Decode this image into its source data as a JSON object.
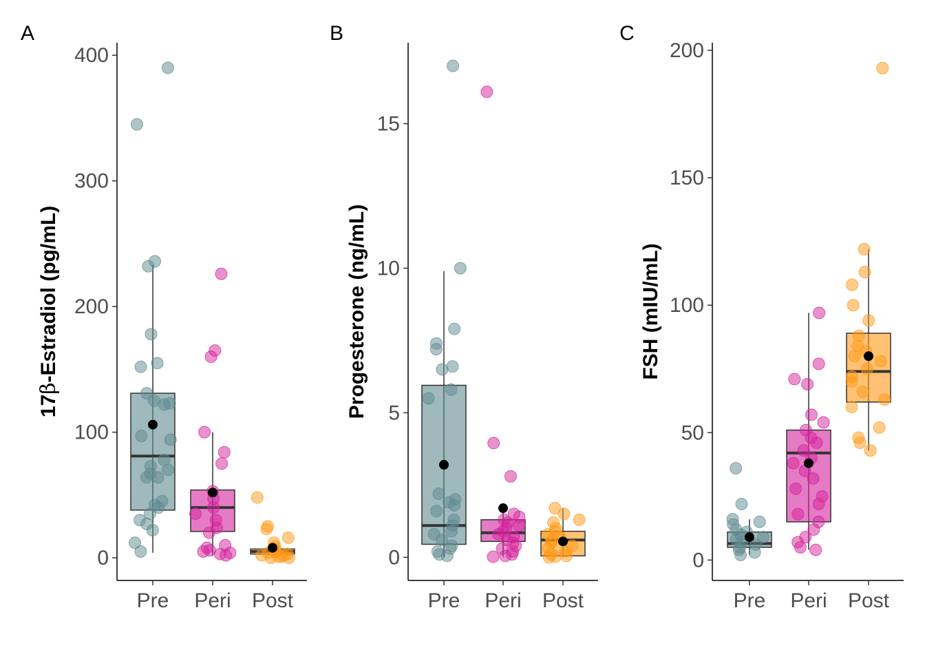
{
  "colors": {
    "Pre": "#5f8a8f",
    "Peri": "#d4239c",
    "Post": "#ff9918",
    "median": "#333333",
    "mean": "#000000"
  },
  "chart_data": [
    {
      "type": "boxplot",
      "panel_tag": "A",
      "ylabel_prefix": "17",
      "ylabel_greek": "β",
      "ylabel_suffix": "-Estradiol (pg/mL)",
      "ylim": [
        -18,
        410
      ],
      "yticks": [
        0,
        100,
        200,
        300,
        400
      ],
      "categories": [
        "Pre",
        "Peri",
        "Post"
      ],
      "boxes": [
        {
          "name": "Pre",
          "q1": 38,
          "median": 81,
          "q3": 131,
          "whisker_low": 4,
          "whisker_high": 233,
          "mean": 106,
          "points": [
            390,
            345,
            236,
            232,
            178,
            155,
            152,
            131,
            125,
            123,
            122,
            97,
            94,
            78,
            73,
            70,
            67,
            64,
            64,
            45,
            42,
            40,
            35,
            30,
            27,
            22,
            12,
            5
          ]
        },
        {
          "name": "Peri",
          "q1": 21,
          "median": 40,
          "q3": 54,
          "whisker_low": 2,
          "whisker_high": 100,
          "mean": 52,
          "points": [
            226,
            165,
            160,
            100,
            84,
            75,
            53,
            47,
            40,
            35,
            30,
            24,
            20,
            10,
            8,
            6,
            5,
            4,
            3,
            2
          ]
        },
        {
          "name": "Post",
          "q1": 3,
          "median": 5,
          "q3": 7,
          "whisker_low": 1,
          "whisker_high": 10,
          "mean": 8,
          "points": [
            48,
            25,
            23,
            16,
            12,
            9,
            7,
            6,
            5,
            4,
            3,
            2,
            2,
            1,
            1,
            0,
            0
          ]
        }
      ]
    },
    {
      "type": "boxplot",
      "panel_tag": "B",
      "ylabel_prefix": "",
      "ylabel_greek": "",
      "ylabel_suffix": "Progesterone (ng/mL)",
      "ylim": [
        -0.8,
        17.8
      ],
      "yticks": [
        0,
        5,
        10,
        15
      ],
      "categories": [
        "Pre",
        "Peri",
        "Post"
      ],
      "boxes": [
        {
          "name": "Pre",
          "q1": 0.45,
          "median": 1.1,
          "q3": 5.95,
          "whisker_low": 0.02,
          "whisker_high": 9.9,
          "mean": 3.2,
          "points": [
            17.0,
            10.0,
            7.9,
            7.4,
            7.2,
            6.6,
            6.5,
            5.8,
            5.5,
            2.2,
            2.0,
            1.9,
            1.8,
            1.6,
            1.3,
            1.1,
            0.9,
            0.8,
            0.6,
            0.4,
            0.3,
            0.2,
            0.1,
            0.05
          ]
        },
        {
          "name": "Peri",
          "q1": 0.55,
          "median": 0.85,
          "q3": 1.3,
          "whisker_low": 0.02,
          "whisker_high": 1.8,
          "mean": 1.7,
          "points": [
            16.1,
            3.95,
            2.8,
            1.5,
            1.4,
            1.3,
            1.2,
            1.1,
            1.0,
            0.9,
            0.8,
            0.7,
            0.6,
            0.5,
            0.4,
            0.3,
            0.2,
            0.1,
            0.05,
            0.02
          ]
        },
        {
          "name": "Post",
          "q1": 0.05,
          "median": 0.6,
          "q3": 0.9,
          "whisker_low": 0.0,
          "whisker_high": 1.7,
          "mean": 0.55,
          "points": [
            1.7,
            1.5,
            1.3,
            1.2,
            1.0,
            0.9,
            0.8,
            0.7,
            0.6,
            0.5,
            0.4,
            0.3,
            0.2,
            0.1,
            0.05,
            0.02,
            0.0
          ]
        }
      ]
    },
    {
      "type": "boxplot",
      "panel_tag": "C",
      "ylabel_prefix": "",
      "ylabel_greek": "",
      "ylabel_suffix": "FSH (mIU/mL)",
      "ylim": [
        -8,
        203
      ],
      "yticks": [
        0,
        50,
        100,
        150,
        200
      ],
      "categories": [
        "Pre",
        "Peri",
        "Post"
      ],
      "boxes": [
        {
          "name": "Pre",
          "q1": 5,
          "median": 6.5,
          "q3": 11,
          "whisker_low": 2,
          "whisker_high": 16,
          "mean": 9,
          "points": [
            36,
            22,
            16,
            15,
            14,
            12,
            11,
            10,
            9,
            8,
            7,
            6,
            5,
            4,
            3,
            2
          ]
        },
        {
          "name": "Peri",
          "q1": 15,
          "median": 42,
          "q3": 51,
          "whisker_low": 4,
          "whisker_high": 97,
          "mean": 38,
          "points": [
            97,
            77,
            71,
            69,
            57,
            54,
            51,
            48,
            46,
            43,
            40,
            38,
            35,
            32,
            28,
            25,
            22,
            18,
            15,
            12,
            9,
            7,
            5,
            4
          ]
        },
        {
          "name": "Post",
          "q1": 62,
          "median": 74,
          "q3": 89,
          "whisker_low": 43,
          "whisker_high": 122,
          "mean": 80,
          "points": [
            193,
            122,
            113,
            108,
            100,
            94,
            88,
            84,
            82,
            80,
            78,
            75,
            72,
            70,
            66,
            63,
            60,
            52,
            48,
            46,
            43
          ]
        }
      ]
    }
  ]
}
